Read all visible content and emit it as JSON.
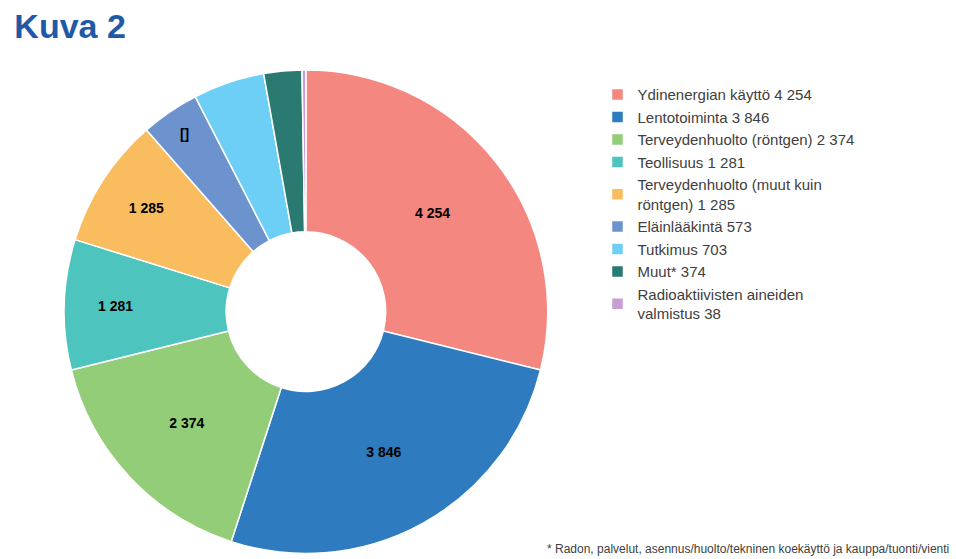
{
  "chart_data": {
    "type": "pie",
    "title": "Kuva 2",
    "categories": [
      "Ydinenergian käyttö 4 254",
      "Lentotoiminta 3 846",
      "Terveydenhuolto (röntgen) 2 374",
      "Teollisuus 1 281",
      "Terveydenhuolto (muut kuin röntgen) 1 285",
      "Eläinlääkintä 573",
      "Tutkimus 703",
      "Muut* 374",
      "Radioaktiivisten aineiden valmistus 38"
    ],
    "values": [
      4254,
      3846,
      2374,
      1281,
      1285,
      573,
      703,
      374,
      38
    ],
    "value_labels": [
      "4 254",
      "3 846",
      "2 374",
      "1 281",
      "1 285",
      "[]",
      null,
      null,
      null
    ],
    "colors": [
      "#f4877f",
      "#2e7bbf",
      "#93cd78",
      "#4dc4be",
      "#f9bc5e",
      "#6d93cf",
      "#6dcff6",
      "#2a7a72",
      "#c89fd4"
    ],
    "legend": "right",
    "data_labels": true,
    "footnote": "* Radon, palvelut, asennus/huolto/tekninen koekäyttö ja kauppa/tuonti/vienti"
  }
}
